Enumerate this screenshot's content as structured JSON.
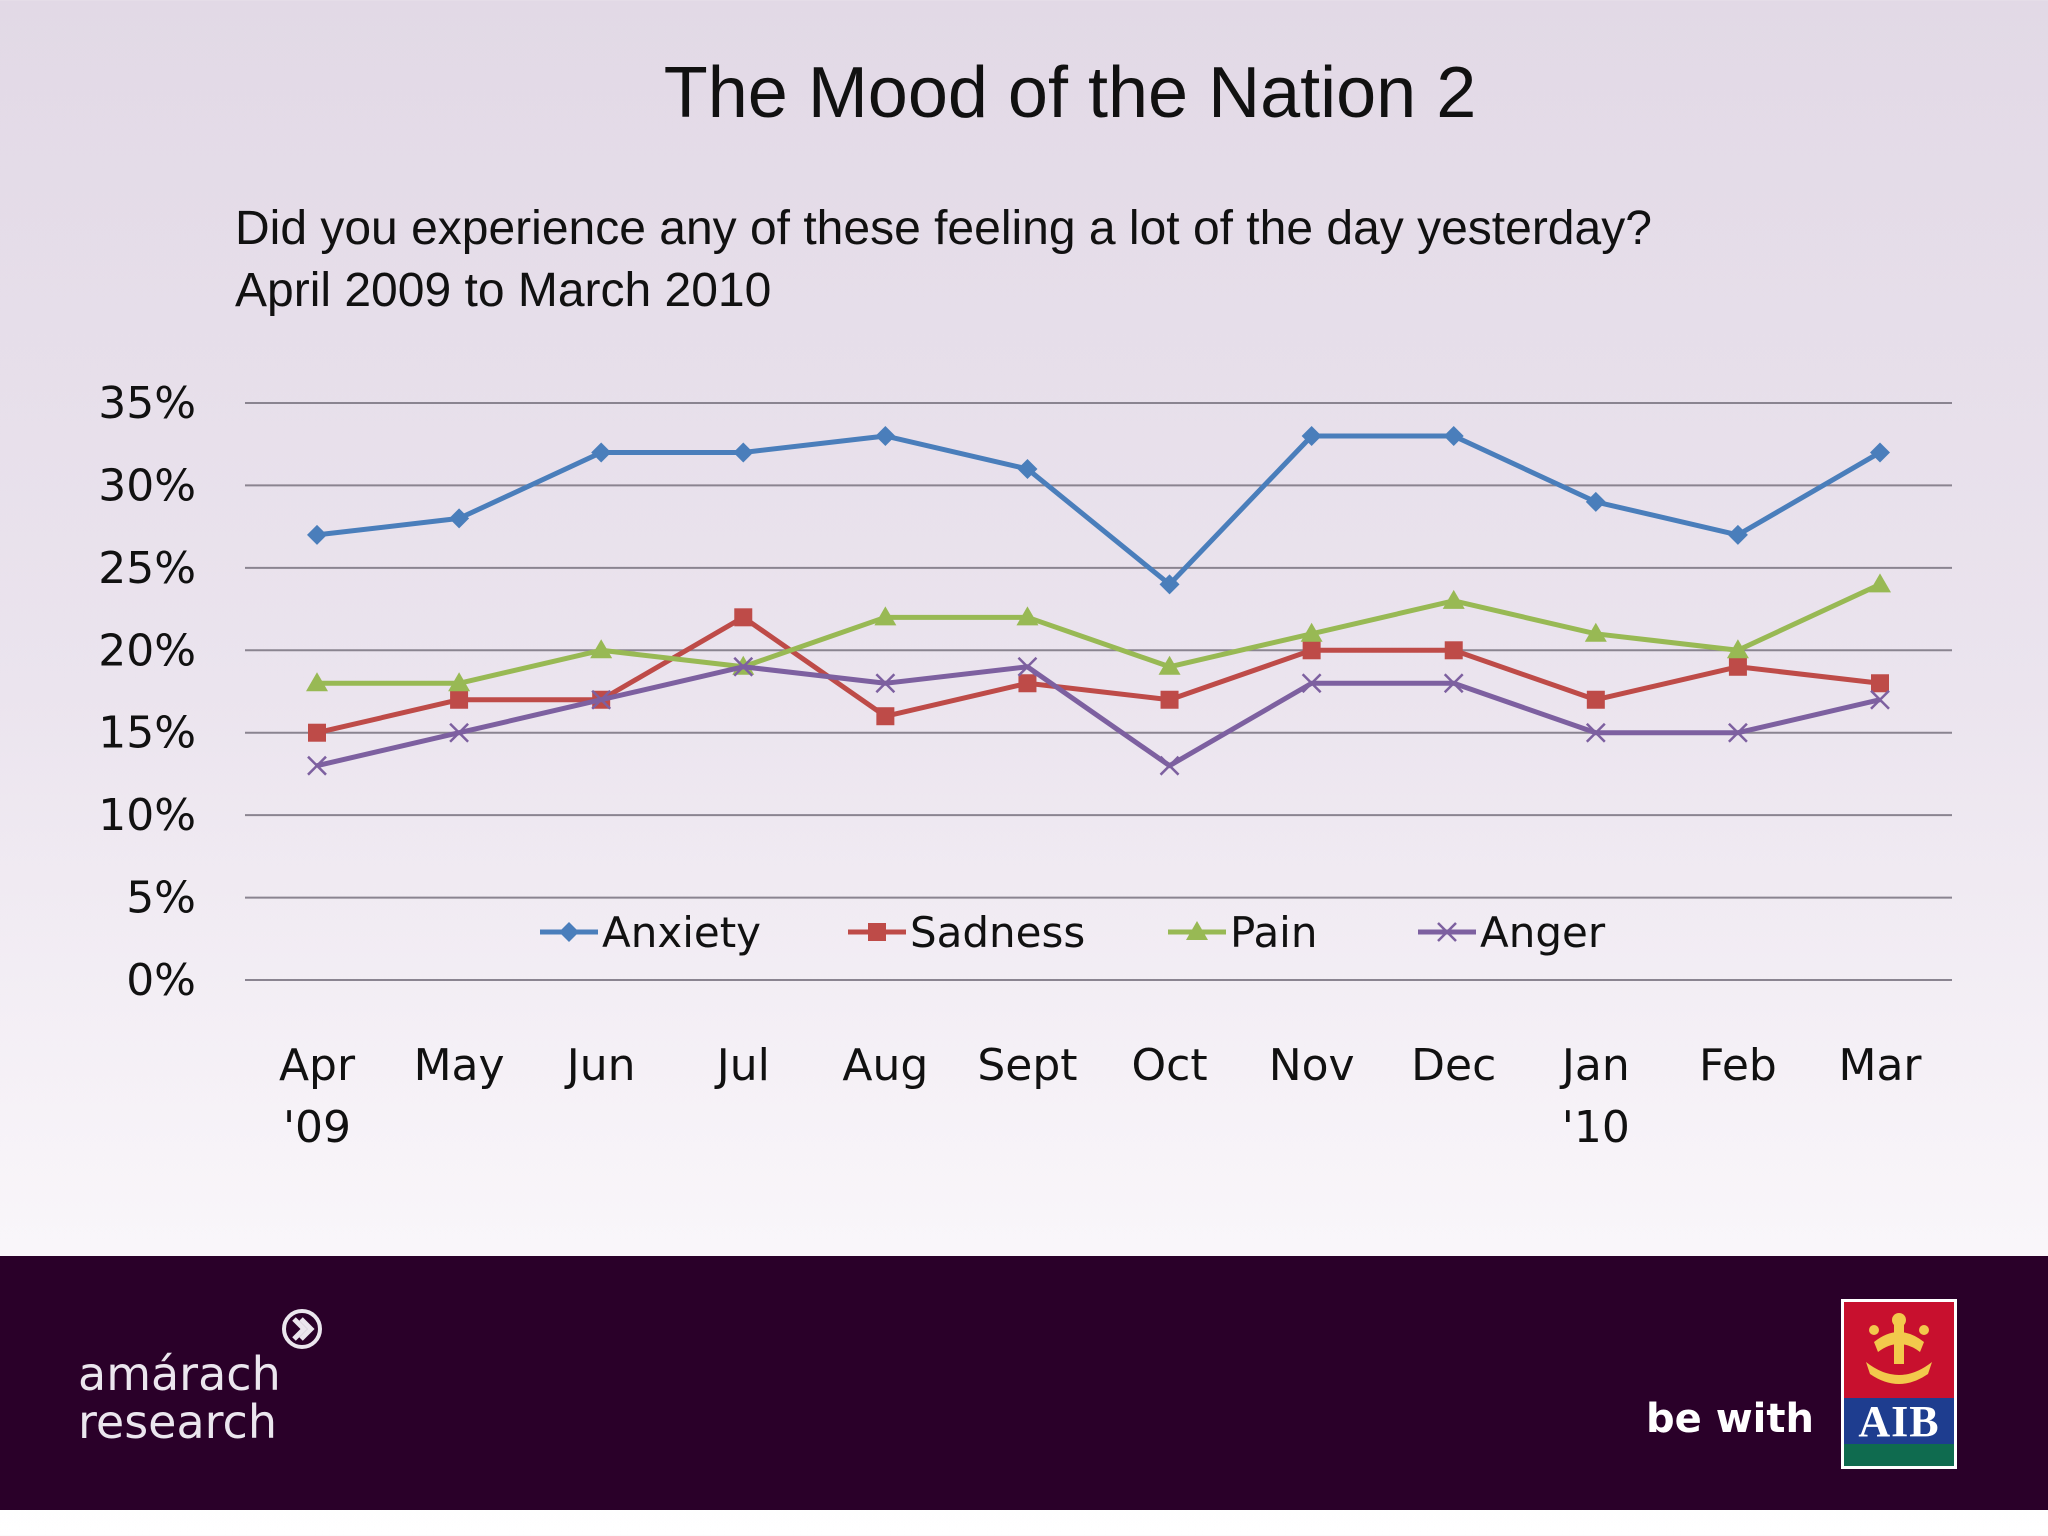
{
  "title": "The Mood of the Nation 2",
  "subtitle_line1": "Did you experience any of these feeling a lot of the day yesterday?",
  "subtitle_line2": "April 2009 to March 2010",
  "chart_data": {
    "type": "line",
    "categories": [
      [
        "Apr",
        "'09"
      ],
      [
        "May"
      ],
      [
        "Jun"
      ],
      [
        "Jul"
      ],
      [
        "Aug"
      ],
      [
        "Sept"
      ],
      [
        "Oct"
      ],
      [
        "Nov"
      ],
      [
        "Dec"
      ],
      [
        "Jan",
        "'10"
      ],
      [
        "Feb"
      ],
      [
        "Mar"
      ]
    ],
    "yticks": [
      "0%",
      "5%",
      "10%",
      "15%",
      "20%",
      "25%",
      "30%",
      "35%"
    ],
    "ylim": [
      0,
      35
    ],
    "grid": true,
    "legend_position": "bottom-inside",
    "series": [
      {
        "name": "Anxiety",
        "color": "#4a7ebb",
        "marker": "diamond",
        "values": [
          27,
          28,
          32,
          32,
          33,
          31,
          24,
          33,
          33,
          29,
          27,
          32
        ]
      },
      {
        "name": "Sadness",
        "color": "#be4b48",
        "marker": "square",
        "values": [
          15,
          17,
          17,
          22,
          16,
          18,
          17,
          20,
          20,
          17,
          19,
          18
        ]
      },
      {
        "name": "Pain",
        "color": "#98b954",
        "marker": "triangle",
        "values": [
          18,
          18,
          20,
          19,
          22,
          22,
          19,
          21,
          23,
          21,
          20,
          24
        ]
      },
      {
        "name": "Anger",
        "color": "#7d60a0",
        "marker": "x",
        "values": [
          13,
          15,
          17,
          19,
          18,
          19,
          13,
          18,
          18,
          15,
          15,
          17
        ]
      }
    ]
  },
  "footer": {
    "brand_line1": "amárach",
    "brand_line2": "research",
    "tagline": "be with",
    "logo_text": "AIB",
    "logo_icon": "aib-ark-icon",
    "brand_icon": "chevron-right-circle-icon"
  }
}
